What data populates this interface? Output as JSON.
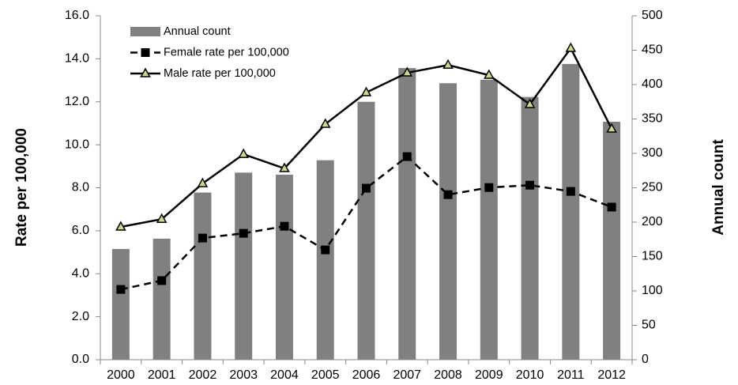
{
  "chart_data": {
    "type": "bar-line",
    "categories": [
      "2000",
      "2001",
      "2002",
      "2003",
      "2004",
      "2005",
      "2006",
      "2007",
      "2008",
      "2009",
      "2010",
      "2011",
      "2012"
    ],
    "y_label": "Rate per 100,000",
    "y2_label": "Annual count",
    "ylim": [
      0,
      16
    ],
    "yticks": [
      {
        "value": 0,
        "label": "0.0"
      },
      {
        "value": 2,
        "label": "2.0"
      },
      {
        "value": 4,
        "label": "4.0"
      },
      {
        "value": 6,
        "label": "6.0"
      },
      {
        "value": 8,
        "label": "8.0"
      },
      {
        "value": 10,
        "label": "10.0"
      },
      {
        "value": 12,
        "label": "12.0"
      },
      {
        "value": 14,
        "label": "14.0"
      },
      {
        "value": 16,
        "label": "16.0"
      }
    ],
    "y2lim": [
      0,
      500
    ],
    "y2ticks": [
      0,
      50,
      100,
      150,
      200,
      250,
      300,
      350,
      400,
      450,
      500
    ],
    "legend": "upper left",
    "grid": false,
    "series": [
      {
        "name": "Annual count",
        "type": "bar",
        "axis": "y2",
        "color": "#808080",
        "values": [
          161,
          176,
          243,
          272,
          269,
          290,
          375,
          424,
          402,
          407,
          382,
          430,
          346
        ]
      },
      {
        "name": "Female rate per 100,000",
        "type": "line",
        "axis": "y",
        "color": "#000000",
        "dash": true,
        "marker": "square",
        "values": [
          3.27,
          3.68,
          5.66,
          5.88,
          6.21,
          5.11,
          7.98,
          9.45,
          7.68,
          8.01,
          8.12,
          7.83,
          7.1
        ]
      },
      {
        "name": "Male rate per 100,000",
        "type": "line",
        "axis": "y",
        "color": "#000000",
        "dash": false,
        "marker": "triangle",
        "marker_fill": "#c9d98e",
        "values": [
          6.18,
          6.54,
          8.2,
          9.56,
          8.9,
          10.96,
          12.43,
          13.35,
          13.71,
          13.24,
          11.88,
          14.49,
          10.74
        ]
      }
    ]
  }
}
